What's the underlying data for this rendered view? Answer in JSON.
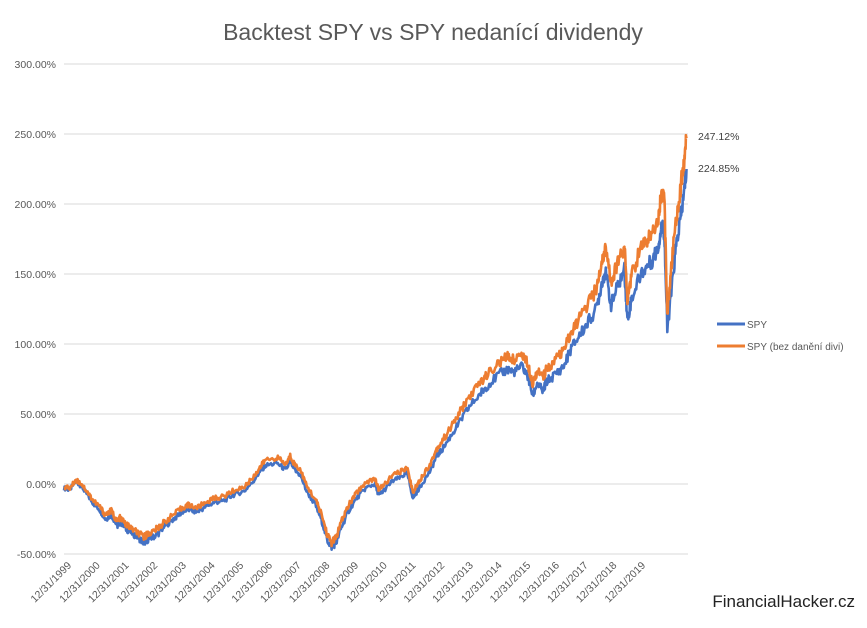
{
  "chart_data": {
    "type": "line",
    "title": "Backtest SPY vs SPY nedanící dividendy",
    "xlabel": "",
    "ylabel": "",
    "ylim": [
      -50,
      300
    ],
    "yticks": [
      "300.00%",
      "250.00%",
      "200.00%",
      "150.00%",
      "100.00%",
      "50.00%",
      "0.00%",
      "-50.00%"
    ],
    "ytick_values": [
      300,
      250,
      200,
      150,
      100,
      50,
      0,
      -50
    ],
    "x_tick_labels": [
      "12/31/1999",
      "12/31/2000",
      "12/31/2001",
      "12/31/2002",
      "12/31/2003",
      "12/31/2004",
      "12/31/2005",
      "12/31/2006",
      "12/31/2007",
      "12/31/2008",
      "12/31/2009",
      "12/31/2010",
      "12/31/2011",
      "12/31/2012",
      "12/31/2013",
      "12/31/2014",
      "12/31/2015",
      "12/31/2016",
      "12/31/2017",
      "12/31/2018",
      "12/31/2019"
    ],
    "xlim": [
      1999.8,
      2020.9
    ],
    "grid": "horizontal",
    "legend_position": "right",
    "series": [
      {
        "name": "SPY",
        "color": "#4472C4",
        "end_label": "224.85%",
        "x": [
          1999.8,
          2000.0,
          2000.2,
          2000.4,
          2000.6,
          2000.8,
          2001.0,
          2001.2,
          2001.4,
          2001.6,
          2001.7,
          2001.9,
          2002.1,
          2002.3,
          2002.5,
          2002.6,
          2002.8,
          2003.0,
          2003.2,
          2003.5,
          2003.8,
          2004.0,
          2004.3,
          2004.6,
          2004.9,
          2005.2,
          2005.5,
          2005.9,
          2006.2,
          2006.4,
          2006.6,
          2007.0,
          2007.3,
          2007.45,
          2007.6,
          2007.8,
          2008.0,
          2008.3,
          2008.5,
          2008.7,
          2008.85,
          2009.0,
          2009.2,
          2009.4,
          2009.7,
          2010.0,
          2010.3,
          2010.45,
          2010.6,
          2010.9,
          2011.2,
          2011.4,
          2011.6,
          2011.75,
          2011.9,
          2012.2,
          2012.4,
          2012.6,
          2012.9,
          2013.2,
          2013.5,
          2013.9,
          2014.1,
          2014.5,
          2014.8,
          2015.0,
          2015.3,
          2015.5,
          2015.65,
          2015.8,
          2016.0,
          2016.1,
          2016.4,
          2016.7,
          2016.95,
          2017.2,
          2017.5,
          2017.8,
          2018.0,
          2018.1,
          2018.3,
          2018.5,
          2018.75,
          2018.85,
          2019.0,
          2019.3,
          2019.5,
          2019.7,
          2019.9,
          2020.0,
          2020.1,
          2020.2,
          2020.35,
          2020.5,
          2020.65,
          2020.75,
          2020.85
        ],
        "y": [
          -3,
          -4,
          2,
          -2,
          -8,
          -14,
          -18,
          -25,
          -22,
          -30,
          -27,
          -32,
          -35,
          -38,
          -42,
          -40,
          -38,
          -35,
          -30,
          -25,
          -20,
          -18,
          -20,
          -16,
          -13,
          -12,
          -8,
          -5,
          2,
          8,
          13,
          15,
          10,
          16,
          10,
          6,
          -5,
          -15,
          -25,
          -40,
          -45,
          -42,
          -30,
          -20,
          -10,
          -3,
          0,
          -8,
          -5,
          2,
          5,
          8,
          -10,
          -5,
          0,
          10,
          20,
          25,
          35,
          45,
          55,
          65,
          70,
          78,
          82,
          80,
          84,
          76,
          63,
          72,
          66,
          73,
          78,
          84,
          97,
          105,
          115,
          125,
          145,
          152,
          128,
          140,
          153,
          117,
          133,
          150,
          155,
          160,
          170,
          185,
          180,
          110,
          140,
          170,
          190,
          205,
          225
        ]
      },
      {
        "name": "SPY (bez danění divi)",
        "color": "#ED7D31",
        "end_label": "247.12%",
        "x": [
          1999.8,
          2000.0,
          2000.2,
          2000.4,
          2000.6,
          2000.8,
          2001.0,
          2001.2,
          2001.4,
          2001.6,
          2001.7,
          2001.9,
          2002.1,
          2002.3,
          2002.5,
          2002.6,
          2002.8,
          2003.0,
          2003.2,
          2003.5,
          2003.8,
          2004.0,
          2004.3,
          2004.6,
          2004.9,
          2005.2,
          2005.5,
          2005.9,
          2006.2,
          2006.4,
          2006.6,
          2007.0,
          2007.3,
          2007.45,
          2007.6,
          2007.8,
          2008.0,
          2008.3,
          2008.5,
          2008.7,
          2008.85,
          2009.0,
          2009.2,
          2009.4,
          2009.7,
          2010.0,
          2010.3,
          2010.45,
          2010.6,
          2010.9,
          2011.2,
          2011.4,
          2011.6,
          2011.75,
          2011.9,
          2012.2,
          2012.4,
          2012.6,
          2012.9,
          2013.2,
          2013.5,
          2013.9,
          2014.1,
          2014.5,
          2014.8,
          2015.0,
          2015.3,
          2015.5,
          2015.65,
          2015.8,
          2016.0,
          2016.1,
          2016.4,
          2016.7,
          2016.95,
          2017.2,
          2017.5,
          2017.8,
          2018.0,
          2018.1,
          2018.3,
          2018.5,
          2018.75,
          2018.85,
          2019.0,
          2019.3,
          2019.5,
          2019.7,
          2019.9,
          2020.0,
          2020.1,
          2020.2,
          2020.35,
          2020.5,
          2020.65,
          2020.75,
          2020.85
        ],
        "y": [
          -2,
          -3,
          3,
          0,
          -6,
          -12,
          -16,
          -22,
          -19,
          -27,
          -24,
          -29,
          -32,
          -35,
          -38,
          -36,
          -34,
          -31,
          -27,
          -22,
          -17,
          -15,
          -17,
          -13,
          -10,
          -9,
          -5,
          -2,
          5,
          11,
          17,
          19,
          14,
          20,
          14,
          10,
          -1,
          -11,
          -21,
          -36,
          -42,
          -38,
          -26,
          -16,
          -6,
          1,
          4,
          -4,
          -1,
          6,
          9,
          12,
          -6,
          0,
          5,
          15,
          25,
          31,
          41,
          52,
          62,
          73,
          78,
          86,
          91,
          89,
          93,
          85,
          72,
          81,
          76,
          82,
          88,
          95,
          108,
          117,
          128,
          139,
          160,
          168,
          145,
          157,
          170,
          133,
          150,
          168,
          174,
          180,
          191,
          208,
          204,
          122,
          158,
          190,
          212,
          228,
          247
        ]
      }
    ]
  },
  "watermark": "FinancialHacker.cz"
}
